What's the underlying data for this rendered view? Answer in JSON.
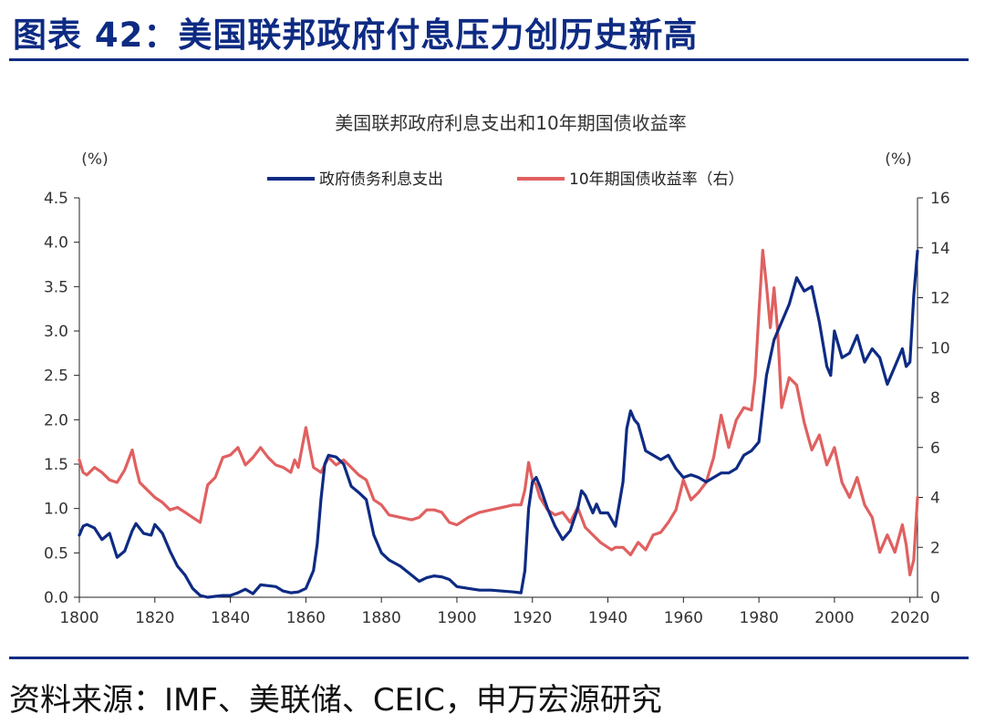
{
  "figure_title": "图表 42：美国联邦政府付息压力创历史新高",
  "source_note": "资料来源：IMF、美联储、CEIC，申万宏源研究",
  "colors": {
    "navy": "#0e2b83",
    "red": "#e06060",
    "axis": "#222222",
    "text": "#333333"
  },
  "chart_data": {
    "type": "line",
    "title": "美国联邦政府利息支出和10年期国债收益率",
    "left_unit": "(%)",
    "right_unit": "(%)",
    "legend_position": "top",
    "grid": false,
    "xlim": [
      1800,
      2022
    ],
    "ylim_left": [
      0,
      4.5
    ],
    "ylim_right": [
      0,
      16
    ],
    "x_ticks": [
      "1800",
      "1820",
      "1840",
      "1860",
      "1880",
      "1900",
      "1920",
      "1940",
      "1960",
      "1980",
      "2000",
      "2020"
    ],
    "y_left_ticks": [
      "0.0",
      "0.5",
      "1.0",
      "1.5",
      "2.0",
      "2.5",
      "3.0",
      "3.5",
      "4.0",
      "4.5"
    ],
    "y_right_ticks": [
      "0",
      "2",
      "4",
      "6",
      "8",
      "10",
      "12",
      "14",
      "16"
    ],
    "series": [
      {
        "name": "政府债务利息支出",
        "axis": "left",
        "color": "#0e2b83",
        "x": [
          1800,
          1801,
          1802,
          1804,
          1806,
          1808,
          1810,
          1812,
          1814,
          1815,
          1817,
          1819,
          1820,
          1822,
          1824,
          1826,
          1828,
          1830,
          1832,
          1834,
          1836,
          1838,
          1840,
          1842,
          1844,
          1846,
          1848,
          1850,
          1852,
          1854,
          1856,
          1858,
          1860,
          1862,
          1863,
          1864,
          1865,
          1866,
          1868,
          1870,
          1872,
          1874,
          1876,
          1878,
          1880,
          1882,
          1885,
          1888,
          1890,
          1892,
          1894,
          1896,
          1898,
          1900,
          1903,
          1906,
          1909,
          1912,
          1915,
          1917,
          1918,
          1919,
          1920,
          1921,
          1922,
          1924,
          1926,
          1928,
          1930,
          1932,
          1933,
          1934,
          1936,
          1937,
          1938,
          1940,
          1942,
          1944,
          1945,
          1946,
          1947,
          1948,
          1950,
          1952,
          1954,
          1956,
          1958,
          1960,
          1962,
          1964,
          1966,
          1968,
          1970,
          1972,
          1974,
          1976,
          1978,
          1980,
          1982,
          1984,
          1986,
          1988,
          1990,
          1992,
          1994,
          1996,
          1998,
          1999,
          2000,
          2002,
          2004,
          2006,
          2008,
          2010,
          2012,
          2014,
          2016,
          2018,
          2019,
          2020,
          2021,
          2022
        ],
        "values": [
          0.7,
          0.8,
          0.82,
          0.78,
          0.65,
          0.72,
          0.45,
          0.52,
          0.75,
          0.83,
          0.72,
          0.7,
          0.82,
          0.72,
          0.52,
          0.35,
          0.25,
          0.1,
          0.02,
          0.0,
          0.01,
          0.02,
          0.02,
          0.05,
          0.09,
          0.04,
          0.14,
          0.13,
          0.12,
          0.07,
          0.05,
          0.06,
          0.1,
          0.3,
          0.6,
          1.1,
          1.5,
          1.6,
          1.58,
          1.5,
          1.25,
          1.18,
          1.1,
          0.7,
          0.5,
          0.42,
          0.35,
          0.25,
          0.18,
          0.22,
          0.24,
          0.23,
          0.2,
          0.12,
          0.1,
          0.08,
          0.08,
          0.07,
          0.06,
          0.05,
          0.3,
          1.0,
          1.3,
          1.35,
          1.25,
          1.0,
          0.8,
          0.65,
          0.75,
          1.0,
          1.2,
          1.15,
          0.95,
          1.05,
          0.95,
          0.95,
          0.8,
          1.3,
          1.9,
          2.1,
          2.0,
          1.95,
          1.65,
          1.6,
          1.55,
          1.6,
          1.45,
          1.35,
          1.38,
          1.35,
          1.3,
          1.35,
          1.4,
          1.4,
          1.45,
          1.6,
          1.65,
          1.75,
          2.5,
          2.9,
          3.1,
          3.3,
          3.6,
          3.45,
          3.5,
          3.1,
          2.6,
          2.5,
          3.0,
          2.7,
          2.75,
          2.95,
          2.65,
          2.8,
          2.7,
          2.4,
          2.6,
          2.8,
          2.6,
          2.65,
          3.4,
          3.9
        ]
      },
      {
        "name": "10年期国债收益率（右）",
        "axis": "right",
        "color": "#e06060",
        "x": [
          1800,
          1801,
          1802,
          1804,
          1806,
          1808,
          1810,
          1812,
          1814,
          1815,
          1816,
          1818,
          1820,
          1822,
          1824,
          1826,
          1828,
          1830,
          1832,
          1834,
          1836,
          1838,
          1840,
          1842,
          1844,
          1846,
          1848,
          1850,
          1852,
          1854,
          1856,
          1857,
          1858,
          1859,
          1860,
          1862,
          1864,
          1866,
          1868,
          1870,
          1872,
          1874,
          1876,
          1878,
          1880,
          1882,
          1885,
          1888,
          1890,
          1892,
          1894,
          1896,
          1898,
          1900,
          1903,
          1906,
          1909,
          1912,
          1915,
          1917,
          1918,
          1919,
          1920,
          1921,
          1922,
          1924,
          1926,
          1928,
          1930,
          1932,
          1934,
          1936,
          1938,
          1940,
          1941,
          1942,
          1944,
          1946,
          1948,
          1950,
          1952,
          1954,
          1956,
          1958,
          1960,
          1962,
          1964,
          1966,
          1968,
          1970,
          1972,
          1974,
          1976,
          1978,
          1979,
          1980,
          1981,
          1982,
          1983,
          1984,
          1985,
          1986,
          1988,
          1990,
          1992,
          1994,
          1996,
          1998,
          2000,
          2002,
          2004,
          2006,
          2008,
          2010,
          2012,
          2014,
          2016,
          2018,
          2019,
          2020,
          2021,
          2022
        ],
        "values": [
          5.5,
          5.0,
          4.9,
          5.2,
          5.0,
          4.7,
          4.6,
          5.1,
          5.9,
          5.2,
          4.6,
          4.3,
          4.0,
          3.8,
          3.5,
          3.6,
          3.4,
          3.2,
          3.0,
          4.5,
          4.8,
          5.6,
          5.7,
          6.0,
          5.3,
          5.6,
          6.0,
          5.6,
          5.3,
          5.2,
          5.0,
          5.5,
          5.2,
          6.0,
          6.8,
          5.2,
          5.0,
          5.6,
          5.3,
          5.5,
          5.2,
          4.9,
          4.7,
          3.9,
          3.7,
          3.3,
          3.2,
          3.1,
          3.2,
          3.5,
          3.5,
          3.4,
          3.0,
          2.9,
          3.2,
          3.4,
          3.5,
          3.6,
          3.7,
          3.7,
          4.3,
          5.4,
          4.7,
          4.5,
          4.0,
          3.5,
          3.3,
          3.4,
          3.0,
          3.6,
          2.8,
          2.5,
          2.2,
          2.0,
          1.9,
          2.0,
          2.0,
          1.7,
          2.2,
          1.9,
          2.5,
          2.6,
          3.0,
          3.5,
          4.7,
          3.9,
          4.2,
          4.6,
          5.6,
          7.3,
          6.0,
          7.1,
          7.6,
          7.5,
          8.8,
          11.4,
          13.9,
          12.5,
          10.8,
          12.4,
          10.6,
          7.6,
          8.8,
          8.5,
          7.0,
          5.9,
          6.5,
          5.3,
          6.0,
          4.6,
          4.0,
          4.8,
          3.7,
          3.2,
          1.8,
          2.5,
          1.8,
          2.9,
          2.1,
          0.9,
          1.5,
          4.0
        ]
      }
    ]
  }
}
